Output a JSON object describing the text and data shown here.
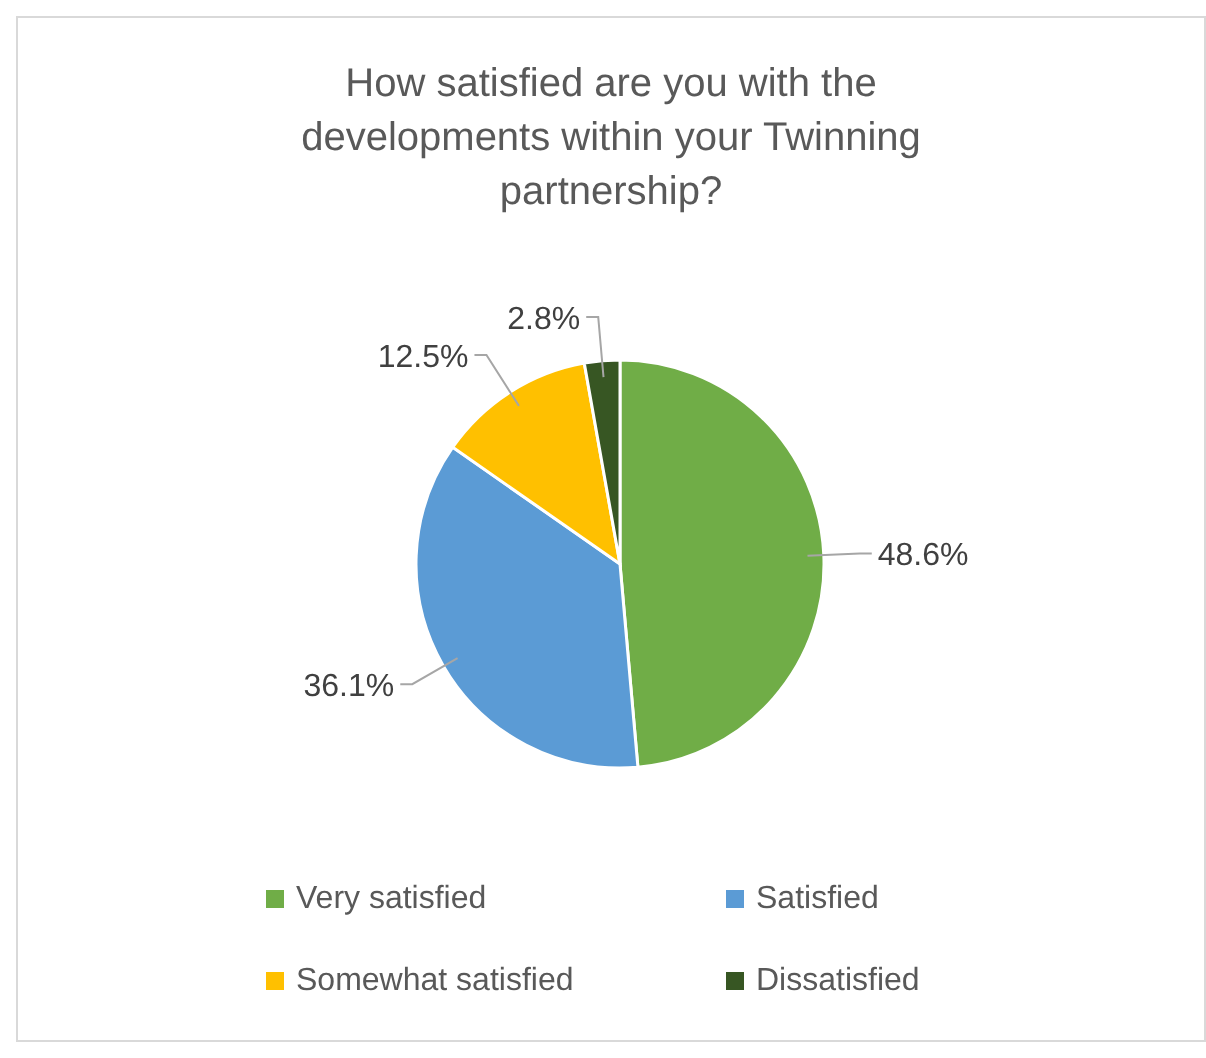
{
  "chart_data": {
    "type": "pie",
    "title": "How satisfied are you with the developments within your Twinning partnership?",
    "categories": [
      "Very satisfied",
      "Satisfied",
      "Somewhat satisfied",
      "Dissatisfied"
    ],
    "values": [
      48.6,
      36.1,
      12.5,
      2.8
    ],
    "value_labels": [
      "48.6%",
      "36.1%",
      "12.5%",
      "2.8%"
    ],
    "colors": [
      "#70ad47",
      "#5b9bd5",
      "#ffc000",
      "#375623"
    ],
    "legend": "bottom"
  }
}
